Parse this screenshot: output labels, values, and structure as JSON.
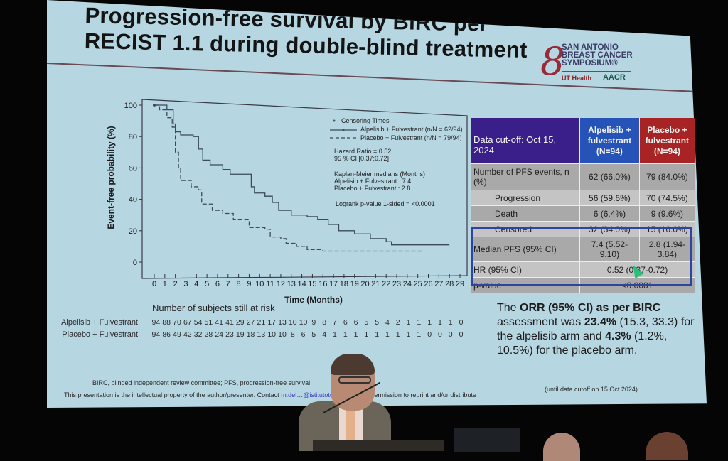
{
  "slide": {
    "title_line1": "Progression-free survival by BIRC per",
    "title_line2": "RECIST 1.1 during double-blind treatment",
    "logo": {
      "mark": "8",
      "line1": "SAN ANTONIO",
      "line2": "BREAST CANCER",
      "line3": "SYMPOSIUM®",
      "partner1": "UT Health",
      "partner2": "AACR"
    },
    "footnote": "BIRC, blinded independent review committee; PFS, progression-free survival",
    "ip_notice_pre": "This presentation is the intellectual property of the author/presenter. Contact ",
    "ip_link": "m.del…@istitutotumori.na.it",
    "ip_notice_post": " for permission to reprint and/or distribute",
    "until_note": "(until data cutoff on 15 Oct 2024)"
  },
  "chart_data": {
    "type": "line",
    "title": "Progression-free survival by BIRC per RECIST 1.1 during double-blind treatment",
    "xlabel": "Time (Months)",
    "ylabel": "Event-free probability (%)",
    "xlim": [
      0,
      29
    ],
    "ylim": [
      0,
      100
    ],
    "x_ticks": [
      0,
      1,
      2,
      3,
      4,
      5,
      6,
      7,
      8,
      9,
      10,
      11,
      12,
      13,
      14,
      15,
      16,
      17,
      18,
      19,
      20,
      21,
      22,
      23,
      24,
      25,
      26,
      27,
      28,
      29
    ],
    "y_ticks": [
      0,
      20,
      40,
      60,
      80,
      100
    ],
    "step": true,
    "legend": {
      "censor": "Censoring Times",
      "alpelisib": "Alpelisib + Fulvestrant (n/N = 62/94)",
      "placebo": "Placebo + Fulvestrant (n/N = 79/94)"
    },
    "annotations": {
      "hr": "Hazard Ratio = 0.52",
      "ci": "95 % CI [0.37;0.72]",
      "km_title": "Kaplan-Meier medians (Months)",
      "km_alp": "Alpelisib + Fulvestrant : 7.4",
      "km_plc": "Placebo + Fulvestrant : 2.8",
      "logrank": "Logrank p-value 1-sided = <0.0001"
    },
    "series": [
      {
        "name": "Alpelisib + Fulvestrant",
        "style": "solid",
        "x": [
          0,
          1.2,
          1.8,
          2.0,
          2.5,
          3.7,
          4.2,
          4.6,
          5.3,
          6.5,
          7.2,
          9.0,
          9.2,
          9.5,
          10.5,
          11.2,
          11.8,
          13.0,
          14.5,
          15.5,
          16.5,
          17.5,
          19.0,
          20.5,
          22.0,
          22.5,
          28.0
        ],
        "y": [
          100,
          97,
          88,
          83,
          81,
          80,
          72,
          65,
          62,
          59,
          56,
          56,
          48,
          44,
          42,
          38,
          33,
          30,
          29,
          27,
          24,
          20,
          18,
          15,
          13,
          11,
          11
        ]
      },
      {
        "name": "Placebo + Fulvestrant",
        "style": "dashed",
        "x": [
          0,
          0.5,
          1.2,
          1.7,
          2.0,
          2.3,
          2.5,
          3.5,
          4.2,
          4.5,
          5.5,
          6.5,
          7.5,
          9.0,
          10.5,
          11.0,
          12.0,
          12.5,
          13.5,
          14.5,
          16.0,
          25.5
        ],
        "y": [
          100,
          97,
          92,
          86,
          70,
          60,
          52,
          48,
          46,
          37,
          33,
          31,
          27,
          22,
          21,
          16,
          15,
          12,
          10,
          8,
          7,
          7
        ]
      }
    ],
    "at_risk": {
      "title": "Number of subjects still at risk",
      "rows": [
        {
          "label": "Alpelisib + Fulvestrant",
          "values": [
            94,
            88,
            70,
            67,
            54,
            51,
            41,
            41,
            29,
            27,
            21,
            17,
            13,
            10,
            10,
            9,
            8,
            7,
            6,
            6,
            5,
            5,
            4,
            2,
            1,
            1,
            1,
            1,
            1,
            0
          ]
        },
        {
          "label": "Placebo + Fulvestrant",
          "values": [
            94,
            86,
            49,
            42,
            32,
            28,
            24,
            23,
            19,
            18,
            13,
            10,
            10,
            8,
            6,
            5,
            4,
            1,
            1,
            1,
            1,
            1,
            1,
            1,
            1,
            1,
            0,
            0,
            0,
            0
          ]
        }
      ]
    }
  },
  "table": {
    "header": {
      "cutoff": "Data cut-off: Oct 15, 2024",
      "alp": "Alpelisib + fulvestrant (N=94)",
      "plc": "Placebo + fulvestrant (N=94)"
    },
    "rows": [
      {
        "label": "Number of PFS events, n (%)",
        "alp": "62 (66.0%)",
        "plc": "79 (84.0%)"
      },
      {
        "label": "Progression",
        "alp": "56 (59.6%)",
        "plc": "70 (74.5%)"
      },
      {
        "label": "Death",
        "alp": "6 (6.4%)",
        "plc": "9 (9.6%)"
      },
      {
        "label": "Censored",
        "alp": "32 (34.0%)",
        "plc": "15 (16.0%)"
      },
      {
        "label": "Median PFS (95% CI)",
        "alp": "7.4 (5.52-9.10)",
        "plc": "2.8 (1.94-3.84)"
      },
      {
        "label": "HR (95% CI)",
        "both": "0.52 (0.37-0.72)"
      },
      {
        "label": "p-value",
        "both": "<0.0001"
      }
    ]
  },
  "orr": {
    "p1": "The ",
    "b1": "ORR (95% CI) as per BIRC",
    "p2": " assessment was ",
    "b2": "23.4%",
    "p3": " (15.3, 33.3) for the alpelisib arm and ",
    "b3": "4.3%",
    "p4": " (1.2%, 10.5%) for the placebo arm."
  },
  "colors": {
    "slide_bg": "#b6d6e2",
    "header_cutoff": "#3a1f8a",
    "header_alp": "#2553b8",
    "header_plc": "#a82424",
    "highlight_box": "#2d44a3",
    "cursor": "#27c27a"
  }
}
